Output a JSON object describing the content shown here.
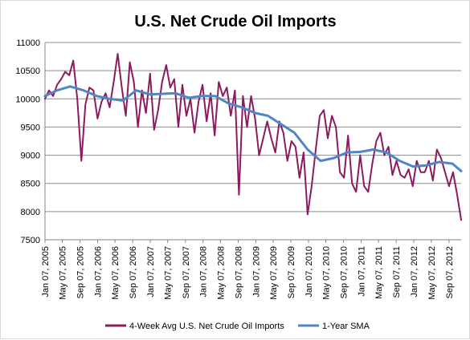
{
  "chart_data": {
    "type": "line",
    "title": "U.S. Net Crude Oil Imports",
    "xlabel": "",
    "ylabel": "",
    "ylim": [
      7500,
      11000
    ],
    "yticks": [
      7500,
      8000,
      8500,
      9000,
      9500,
      10000,
      10500,
      11000
    ],
    "grid": true,
    "legend_position": "bottom",
    "x_start": "2005-01-07",
    "x_end": "2012-11-30",
    "xtick_labels": [
      "Jan 07, 2005",
      "May 07, 2005",
      "Sep 07, 2005",
      "Jan 07, 2006",
      "May 07, 2006",
      "Sep 07, 2006",
      "Jan 07, 2007",
      "May 07, 2007",
      "Sep 07, 2007",
      "Jan 07, 2008",
      "May 07, 2008",
      "Sep 07, 2008",
      "Jan 07, 2009",
      "May 07, 2009",
      "Sep 07, 2009",
      "Jan 07, 2010",
      "May 07, 2010",
      "Sep 07, 2010",
      "Jan 07, 2011",
      "May 07, 2011",
      "Sep 07, 2011",
      "Jan 07, 2012",
      "May 07, 2012",
      "Sep 07, 2012"
    ],
    "xtick_dates": [
      "2005-01-07",
      "2005-05-07",
      "2005-09-07",
      "2006-01-07",
      "2006-05-07",
      "2006-09-07",
      "2007-01-07",
      "2007-05-07",
      "2007-09-07",
      "2008-01-07",
      "2008-05-07",
      "2008-09-07",
      "2009-01-07",
      "2009-05-07",
      "2009-09-07",
      "2010-01-07",
      "2010-05-07",
      "2010-09-07",
      "2011-01-07",
      "2011-05-07",
      "2011-09-07",
      "2012-01-07",
      "2012-05-07",
      "2012-09-07"
    ],
    "series": [
      {
        "name": "4-Week Avg U.S. Net Crude Oil Imports",
        "color": "#8b1a5e",
        "x": [
          "2005-01-07",
          "2005-02-04",
          "2005-03-04",
          "2005-04-01",
          "2005-04-29",
          "2005-05-27",
          "2005-06-24",
          "2005-07-22",
          "2005-08-19",
          "2005-09-16",
          "2005-10-14",
          "2005-11-11",
          "2005-12-09",
          "2006-01-06",
          "2006-02-03",
          "2006-03-03",
          "2006-03-31",
          "2006-04-28",
          "2006-05-26",
          "2006-06-23",
          "2006-07-21",
          "2006-08-18",
          "2006-09-15",
          "2006-10-13",
          "2006-11-10",
          "2006-12-08",
          "2007-01-05",
          "2007-02-02",
          "2007-03-02",
          "2007-03-30",
          "2007-04-27",
          "2007-05-25",
          "2007-06-22",
          "2007-07-20",
          "2007-08-17",
          "2007-09-14",
          "2007-10-12",
          "2007-11-09",
          "2007-12-07",
          "2008-01-04",
          "2008-02-01",
          "2008-02-29",
          "2008-03-28",
          "2008-04-25",
          "2008-05-23",
          "2008-06-20",
          "2008-07-18",
          "2008-08-15",
          "2008-09-12",
          "2008-10-10",
          "2008-11-07",
          "2008-12-05",
          "2009-01-02",
          "2009-01-30",
          "2009-02-27",
          "2009-03-27",
          "2009-04-24",
          "2009-05-22",
          "2009-06-19",
          "2009-07-17",
          "2009-08-14",
          "2009-09-11",
          "2009-10-09",
          "2009-11-06",
          "2009-12-04",
          "2010-01-01",
          "2010-01-29",
          "2010-02-26",
          "2010-03-26",
          "2010-04-23",
          "2010-05-21",
          "2010-06-18",
          "2010-07-16",
          "2010-08-13",
          "2010-09-10",
          "2010-10-08",
          "2010-11-05",
          "2010-12-03",
          "2010-12-31",
          "2011-01-28",
          "2011-02-25",
          "2011-03-25",
          "2011-04-22",
          "2011-05-20",
          "2011-06-17",
          "2011-07-15",
          "2011-08-12",
          "2011-09-09",
          "2011-10-07",
          "2011-11-04",
          "2011-12-02",
          "2011-12-30",
          "2012-01-27",
          "2012-02-24",
          "2012-03-23",
          "2012-04-20",
          "2012-05-18",
          "2012-06-15",
          "2012-07-13",
          "2012-08-10",
          "2012-09-07",
          "2012-10-05",
          "2012-11-02",
          "2012-11-30"
        ],
        "values": [
          10000,
          10150,
          10050,
          10250,
          10350,
          10480,
          10420,
          10680,
          10000,
          8900,
          9900,
          10200,
          10150,
          9650,
          9950,
          10100,
          9850,
          10300,
          10800,
          10200,
          9700,
          10650,
          10300,
          9500,
          10150,
          9750,
          10450,
          9450,
          9800,
          10300,
          10600,
          10200,
          10350,
          9500,
          10250,
          9700,
          10000,
          9400,
          9950,
          10250,
          9600,
          10100,
          9350,
          10300,
          10050,
          10200,
          9700,
          10150,
          8300,
          10050,
          9500,
          10050,
          9650,
          9000,
          9300,
          9600,
          9300,
          9050,
          9600,
          9400,
          8900,
          9250,
          9150,
          8600,
          9050,
          7950,
          8450,
          9100,
          9700,
          9800,
          9300,
          9700,
          9500,
          8700,
          8600,
          9350,
          8500,
          8350,
          9000,
          8450,
          8350,
          8850,
          9250,
          9400,
          9000,
          9150,
          8650,
          8900,
          8650,
          8600,
          8750,
          8450,
          8900,
          8700,
          8700,
          8900,
          8550,
          9100,
          8950,
          8700,
          8450,
          8700,
          8300,
          7850
        ]
      },
      {
        "name": "1-Year SMA",
        "color": "#4f86c6",
        "x": [
          "2005-01-07",
          "2005-04-01",
          "2005-07-01",
          "2005-10-01",
          "2006-01-01",
          "2006-04-01",
          "2006-07-01",
          "2006-10-01",
          "2007-01-01",
          "2007-04-01",
          "2007-07-01",
          "2007-10-01",
          "2008-01-01",
          "2008-04-01",
          "2008-07-01",
          "2008-10-01",
          "2009-01-01",
          "2009-04-01",
          "2009-07-01",
          "2009-10-01",
          "2010-01-01",
          "2010-04-01",
          "2010-07-01",
          "2010-10-01",
          "2011-01-01",
          "2011-04-01",
          "2011-07-01",
          "2011-10-01",
          "2012-01-01",
          "2012-04-01",
          "2012-07-01",
          "2012-10-01",
          "2012-11-30"
        ],
        "values": [
          10050,
          10150,
          10220,
          10150,
          10050,
          10000,
          9970,
          10150,
          10080,
          10090,
          10100,
          10020,
          10050,
          10050,
          9920,
          9850,
          9750,
          9700,
          9550,
          9400,
          9100,
          8900,
          8950,
          9050,
          9060,
          9100,
          9050,
          8900,
          8800,
          8820,
          8880,
          8850,
          8720
        ]
      }
    ]
  }
}
